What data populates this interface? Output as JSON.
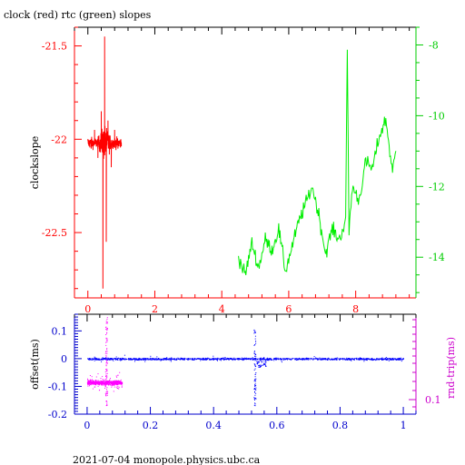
{
  "title": "clock (red) rtc (green) slopes",
  "footer": "2021-07-04 monopole.physics.ubc.ca",
  "colors": {
    "red": "#ff0000",
    "green": "#00ee00",
    "blue": "#0000ff",
    "magenta": "#ff00ff",
    "axis_red": "#ff0000",
    "axis_green": "#00cc00",
    "axis_blue": "#0000cc",
    "axis_magenta": "#cc00cc",
    "black": "#000000"
  },
  "chart_data": [
    {
      "type": "line",
      "ylabel": "clockslope",
      "xlim": [
        -0.4,
        9.8
      ],
      "ylim": [
        -22.85,
        -21.4
      ],
      "y2lim": [
        -15.15,
        -7.5
      ],
      "x_ticks": [
        0,
        2,
        4,
        6,
        8
      ],
      "y_ticks": [
        -21.5,
        -22,
        -22.5
      ],
      "y_tick_labels": [
        "-21.5",
        "-22",
        "-22.5"
      ],
      "y2_ticks": [
        -8,
        -10,
        -12,
        -14
      ],
      "y2_tick_labels": [
        "-8",
        "-10",
        "-12",
        "-14"
      ],
      "series": [
        {
          "color": "red",
          "axis": "left",
          "x_range": [
            0.0,
            1.0
          ],
          "center": -22.02,
          "x": [
            0.0,
            0.1,
            0.2,
            0.3,
            0.4,
            0.45,
            0.5,
            0.55,
            0.6,
            0.7,
            0.8,
            0.9,
            1.0
          ],
          "y": [
            -22.0,
            -22.05,
            -21.95,
            -22.1,
            -21.85,
            -22.8,
            -21.45,
            -22.55,
            -21.9,
            -22.15,
            -21.95,
            -22.05,
            -22.02
          ]
        },
        {
          "color": "green",
          "axis": "right",
          "x": [
            4.5,
            4.7,
            4.9,
            5.1,
            5.3,
            5.5,
            5.7,
            5.9,
            6.1,
            6.3,
            6.5,
            6.7,
            6.9,
            7.1,
            7.3,
            7.5,
            7.7,
            7.75,
            7.8,
            7.9,
            8.1,
            8.3,
            8.5,
            8.7,
            8.9,
            9.1,
            9.2
          ],
          "y": [
            -14.0,
            -14.5,
            -13.6,
            -14.3,
            -13.5,
            -13.8,
            -13.2,
            -14.4,
            -13.7,
            -13.0,
            -12.5,
            -12.0,
            -12.8,
            -13.9,
            -13.2,
            -13.5,
            -13.0,
            -8.1,
            -13.3,
            -12.0,
            -12.4,
            -11.3,
            -11.5,
            -10.6,
            -10.1,
            -11.6,
            -11.0
          ]
        }
      ]
    },
    {
      "type": "scatter",
      "ylabel": "offset(ms)",
      "y2label": "rnd-trip(ms)",
      "xlim": [
        -0.04,
        1.04
      ],
      "ylim": [
        -0.2,
        0.16
      ],
      "x_ticks": [
        0,
        0.2,
        0.4,
        0.6,
        0.8,
        1
      ],
      "x_tick_labels": [
        "0",
        "0.2",
        "0.4",
        "0.6",
        "0.8",
        "1"
      ],
      "y_ticks": [
        0.1,
        0,
        -0.1,
        -0.2
      ],
      "y_tick_labels": [
        "0.1",
        "0",
        "-0.1",
        "-0.2"
      ],
      "y2_ticks": [
        0.1
      ],
      "y2_tick_labels": [
        "0.1"
      ],
      "series": [
        {
          "color": "blue",
          "axis": "left",
          "x_range": [
            0.0,
            1.0
          ],
          "center": 0.0,
          "features": [
            {
              "x": 0.53,
              "y_range": [
                -0.17,
                0.11
              ]
            },
            {
              "x": 0.55,
              "y_range": [
                -0.03,
                -0.005
              ]
            }
          ]
        },
        {
          "color": "magenta",
          "axis": "right",
          "x_range": [
            0.0,
            0.11
          ],
          "center": -0.085,
          "features": [
            {
              "x": 0.06,
              "y_range": [
                -0.17,
                0.15
              ]
            }
          ]
        }
      ]
    }
  ]
}
